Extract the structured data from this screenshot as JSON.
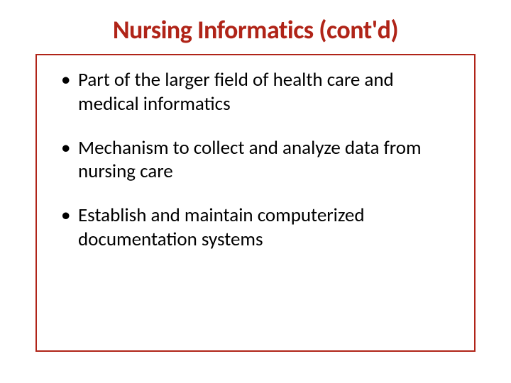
{
  "slide": {
    "title": "Nursing Informatics (cont'd)",
    "title_color": "#b02418",
    "border_color": "#b02418",
    "body_text_color": "#000000",
    "background_color": "#ffffff",
    "title_fontsize": 36,
    "body_fontsize": 27,
    "bullets": [
      "Part of the larger field of health care and medical informatics",
      "Mechanism to collect and analyze data from nursing care",
      "Establish and maintain computerized documentation systems"
    ]
  }
}
